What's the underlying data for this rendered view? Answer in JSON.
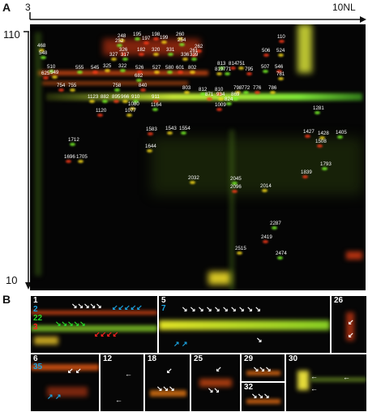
{
  "panel_a": {
    "letter": "A",
    "x_start": "3",
    "x_end": "10NL",
    "y_top": "110",
    "y_bottom": "10",
    "spots": [
      [
        "110",
        305,
        13
      ],
      [
        "248",
        108,
        12
      ],
      [
        "195",
        127,
        10
      ],
      [
        "198",
        150,
        10
      ],
      [
        "260",
        180,
        10
      ],
      [
        "252",
        105,
        18
      ],
      [
        "197",
        138,
        15
      ],
      [
        "199",
        160,
        14
      ],
      [
        "254",
        182,
        17
      ],
      [
        "262",
        203,
        25
      ],
      [
        "468",
        9,
        24
      ],
      [
        "548",
        11,
        33
      ],
      [
        "326",
        110,
        29
      ],
      [
        "327",
        98,
        35
      ],
      [
        "317",
        112,
        35
      ],
      [
        "182",
        132,
        29
      ],
      [
        "320",
        150,
        29
      ],
      [
        "331",
        168,
        29
      ],
      [
        "261",
        197,
        30
      ],
      [
        "336",
        186,
        35
      ],
      [
        "339",
        197,
        35
      ],
      [
        "506",
        286,
        30
      ],
      [
        "524",
        304,
        30
      ],
      [
        "510",
        21,
        50
      ],
      [
        "625",
        14,
        58
      ],
      [
        "549",
        25,
        57
      ],
      [
        "555",
        56,
        51
      ],
      [
        "545",
        75,
        51
      ],
      [
        "325",
        90,
        49
      ],
      [
        "322",
        109,
        49
      ],
      [
        "526",
        130,
        51
      ],
      [
        "527",
        151,
        51
      ],
      [
        "580",
        167,
        51
      ],
      [
        "601",
        180,
        51
      ],
      [
        "802",
        195,
        51
      ],
      [
        "813",
        231,
        46
      ],
      [
        "814",
        245,
        46
      ],
      [
        "751",
        255,
        46
      ],
      [
        "507",
        285,
        50
      ],
      [
        "546",
        302,
        50
      ],
      [
        "819",
        228,
        53
      ],
      [
        "771",
        238,
        53
      ],
      [
        "795",
        265,
        53
      ],
      [
        "781",
        304,
        59
      ],
      [
        "682",
        129,
        61
      ],
      [
        "754",
        33,
        73
      ],
      [
        "755",
        47,
        73
      ],
      [
        "758",
        102,
        73
      ],
      [
        "840",
        134,
        73
      ],
      [
        "803",
        188,
        76
      ],
      [
        "812",
        208,
        78
      ],
      [
        "810",
        228,
        78
      ],
      [
        "798",
        251,
        76
      ],
      [
        "772",
        261,
        76
      ],
      [
        "776",
        275,
        76
      ],
      [
        "786",
        294,
        76
      ],
      [
        "869",
        248,
        84
      ],
      [
        "871",
        216,
        84
      ],
      [
        "934",
        230,
        84
      ],
      [
        "824",
        240,
        90
      ],
      [
        "1009",
        228,
        97
      ],
      [
        "1123",
        71,
        87
      ],
      [
        "882",
        87,
        87
      ],
      [
        "895",
        101,
        87
      ],
      [
        "966",
        112,
        87
      ],
      [
        "910",
        125,
        87
      ],
      [
        "911",
        150,
        87
      ],
      [
        "1080",
        121,
        96
      ],
      [
        "1164",
        149,
        97
      ],
      [
        "1120",
        81,
        104
      ],
      [
        "1077",
        117,
        104
      ],
      [
        "1281",
        349,
        101
      ],
      [
        "1583",
        143,
        127
      ],
      [
        "1543",
        167,
        126
      ],
      [
        "1554",
        184,
        126
      ],
      [
        "1427",
        337,
        130
      ],
      [
        "1428",
        355,
        132
      ],
      [
        "1405",
        377,
        131
      ],
      [
        "1508",
        352,
        142
      ],
      [
        "1644",
        142,
        148
      ],
      [
        "1712",
        47,
        140
      ],
      [
        "1696",
        42,
        161
      ],
      [
        "1705",
        57,
        161
      ],
      [
        "1793",
        358,
        170
      ],
      [
        "1839",
        334,
        180
      ],
      [
        "2032",
        195,
        187
      ],
      [
        "2045",
        247,
        188
      ],
      [
        "2096",
        247,
        198
      ],
      [
        "2014",
        284,
        197
      ],
      [
        "2287",
        296,
        243
      ],
      [
        "2419",
        285,
        260
      ],
      [
        "2515",
        253,
        274
      ],
      [
        "2474",
        303,
        280
      ]
    ]
  },
  "panel_b": {
    "letter": "B",
    "legend_numbers": [
      {
        "text": "1",
        "color": "#ffffff"
      },
      {
        "text": "2",
        "color": "#1aa3e0"
      },
      {
        "text": "22",
        "color": "#29d629"
      },
      {
        "text": "3",
        "color": "#ff2020"
      }
    ],
    "insets": [
      {
        "label": "5",
        "label2": "7",
        "label2_color": "#1aa3e0"
      },
      {
        "label": "26"
      },
      {
        "label": "6",
        "label2": "35",
        "label2_color": "#1aa3e0"
      },
      {
        "label": "12"
      },
      {
        "label": "18"
      },
      {
        "label": "25"
      },
      {
        "label": "29"
      },
      {
        "label": "32"
      },
      {
        "label": "30"
      }
    ]
  },
  "colors": {
    "spot_red": "#ff3b1a",
    "spot_yellow": "#ffe11a",
    "spot_green": "#7cff2a",
    "arrow_white": "#ffffff",
    "arrow_blue": "#1aa3e0",
    "arrow_green": "#29d629",
    "arrow_red": "#ff2020"
  }
}
